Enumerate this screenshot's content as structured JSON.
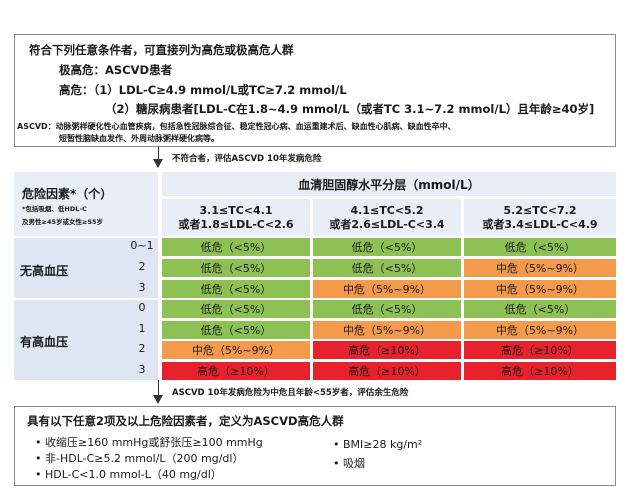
{
  "top": {
    "line1": "符合下列任意条件者，可直接列为高危或极高危人群",
    "line2": "极高危：ASCVD患者",
    "line3": "高危：（1）LDL-C≥4.9 mmol/L或TC≥7.2 mmol/L",
    "line4": "（2）糖尿病患者[LDL-C在1.8~4.9 mmol/L（或者TC 3.1~7.2 mmol/L）且年龄≥40岁]",
    "note1": "ASCVD：动脉粥样硬化性心血管疾病，包括急性冠脉综合征、稳定性冠心病、血运重建术后、缺血性心肌病、缺血性卒中、",
    "note2": "短暂性脑缺血发作、外周动脉粥样硬化病等。"
  },
  "arrow1_note": "不符合者，评估ASCVD 10年发病危险",
  "table": {
    "risk_factor_title": "危险因素*（个）",
    "risk_factor_sub1": "*包括吸烟、低HDL-C",
    "risk_factor_sub2": "及男性≥45岁或女性≥55岁",
    "strata_title": "血清胆固醇水平分层（mmol/L）",
    "columns": [
      {
        "l1": "3.1≤TC<4.1",
        "l2": "或者1.8≤LDL-C<2.6"
      },
      {
        "l1": "4.1≤TC<5.2",
        "l2": "或者2.6≤LDL-C<3.4"
      },
      {
        "l1": "5.2≤TC<7.2",
        "l2": "或者3.4≤LDL-C<4.9"
      }
    ],
    "group1_label": "无高血压",
    "group2_label": "有高血压",
    "counts": [
      "0~1",
      "2",
      "3",
      "0",
      "1",
      "2",
      "3"
    ],
    "cells": [
      [
        "低危（<5%）",
        "低危（<5%）",
        "低危（<5%）"
      ],
      [
        "低危（<5%）",
        "低危（<5%）",
        "中危（5%~9%）"
      ],
      [
        "低危（<5%）",
        "中危（5%~9%）",
        "中危（5%~9%）"
      ],
      [
        "低危（<5%）",
        "低危（<5%）",
        "低危（<5%）"
      ],
      [
        "低危（<5%）",
        "中危（5%~9%）",
        "中危（5%~9%）"
      ],
      [
        "中危（5%~9%）",
        "高危（≥10%）",
        "高危（≥10%）"
      ],
      [
        "高危（≥10%）",
        "高危（≥10%）",
        "高危（≥10%）"
      ]
    ],
    "colors": {
      "low": "#8dc153",
      "mid": "#f49a4c",
      "high": "#e8222d"
    }
  },
  "arrow2_note": "ASCVD 10年发病危险为中危且年龄<55岁者，评估余生危险",
  "bottom": {
    "title": "具有以下任意2项及以上危险因素者，定义为ASCVD高危人群",
    "items_left": [
      "• 收缩压≥160 mmHg或舒张压≥100 mmHg",
      "• 非-HDL-C≥5.2 mmol/L（200 mg/dl）",
      "• HDL-C<1.0 mmol-L（40 mg/dl）"
    ],
    "items_right": [
      "• BMI≥28 kg/m²",
      "• 吸烟"
    ]
  }
}
